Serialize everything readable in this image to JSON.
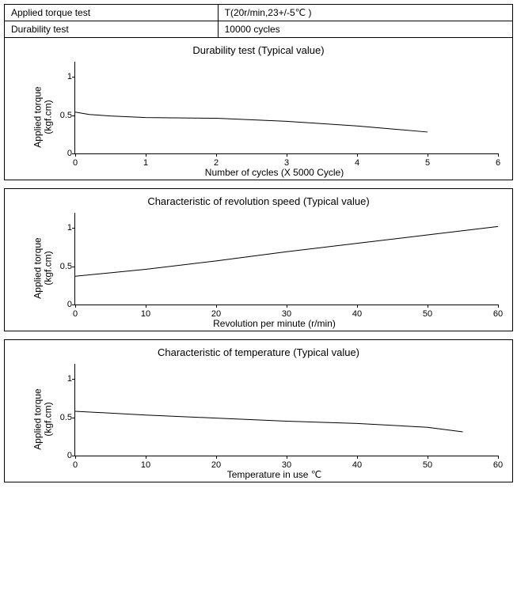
{
  "spec_table": {
    "rows": [
      {
        "label": "Applied torque test",
        "value": "T(20r/min,23+/-5℃ )"
      },
      {
        "label": "Durability test",
        "value": "10000 cycles"
      }
    ]
  },
  "charts": [
    {
      "id": "durability",
      "title": "Durability test (Typical value)",
      "ylabel_line1": "Applied torque",
      "ylabel_line2": "(kgf.cm)",
      "xlabel": "Number of cycles (X 5000 Cycle)",
      "ylim": [
        0,
        1.2
      ],
      "yticks": [
        0,
        0.5,
        1.0
      ],
      "xlim": [
        0,
        6
      ],
      "xticks": [
        0,
        1,
        2,
        3,
        4,
        5,
        6
      ],
      "line_color": "#000000",
      "line_width": 1,
      "data": [
        {
          "x": 0.0,
          "y": 0.54
        },
        {
          "x": 0.2,
          "y": 0.51
        },
        {
          "x": 0.5,
          "y": 0.49
        },
        {
          "x": 1.0,
          "y": 0.47
        },
        {
          "x": 2.0,
          "y": 0.46
        },
        {
          "x": 3.0,
          "y": 0.42
        },
        {
          "x": 4.0,
          "y": 0.36
        },
        {
          "x": 5.0,
          "y": 0.28
        }
      ],
      "attach_to_table": true
    },
    {
      "id": "revolution",
      "title": "Characteristic of revolution speed (Typical value)",
      "ylabel_line1": "Applied torque",
      "ylabel_line2": "(kgf.cm)",
      "xlabel": "Revolution per minute (r/min)",
      "ylim": [
        0,
        1.2
      ],
      "yticks": [
        0,
        0.5,
        1.0
      ],
      "xlim": [
        0,
        60
      ],
      "xticks": [
        0,
        10,
        20,
        30,
        40,
        50,
        60
      ],
      "line_color": "#000000",
      "line_width": 1,
      "data": [
        {
          "x": 0,
          "y": 0.37
        },
        {
          "x": 10,
          "y": 0.46
        },
        {
          "x": 20,
          "y": 0.57
        },
        {
          "x": 30,
          "y": 0.69
        },
        {
          "x": 40,
          "y": 0.8
        },
        {
          "x": 50,
          "y": 0.91
        },
        {
          "x": 60,
          "y": 1.02
        }
      ],
      "attach_to_table": false
    },
    {
      "id": "temperature",
      "title": "Characteristic of temperature (Typical value)",
      "ylabel_line1": "Applied torque",
      "ylabel_line2": "(kgf.cm)",
      "xlabel": "Temperature in use ℃",
      "ylim": [
        0,
        1.2
      ],
      "yticks": [
        0,
        0.5,
        1.0
      ],
      "xlim": [
        0,
        60
      ],
      "xticks": [
        0,
        10,
        20,
        30,
        40,
        50,
        60
      ],
      "line_color": "#000000",
      "line_width": 1,
      "data": [
        {
          "x": 0,
          "y": 0.58
        },
        {
          "x": 10,
          "y": 0.53
        },
        {
          "x": 20,
          "y": 0.49
        },
        {
          "x": 30,
          "y": 0.45
        },
        {
          "x": 40,
          "y": 0.42
        },
        {
          "x": 50,
          "y": 0.37
        },
        {
          "x": 55,
          "y": 0.31
        }
      ],
      "attach_to_table": false
    }
  ],
  "colors": {
    "border": "#000000",
    "background": "#ffffff",
    "text": "#000000"
  },
  "fonts": {
    "base_size_pt": 12,
    "title_size_pt": 13,
    "tick_size_pt": 11
  }
}
